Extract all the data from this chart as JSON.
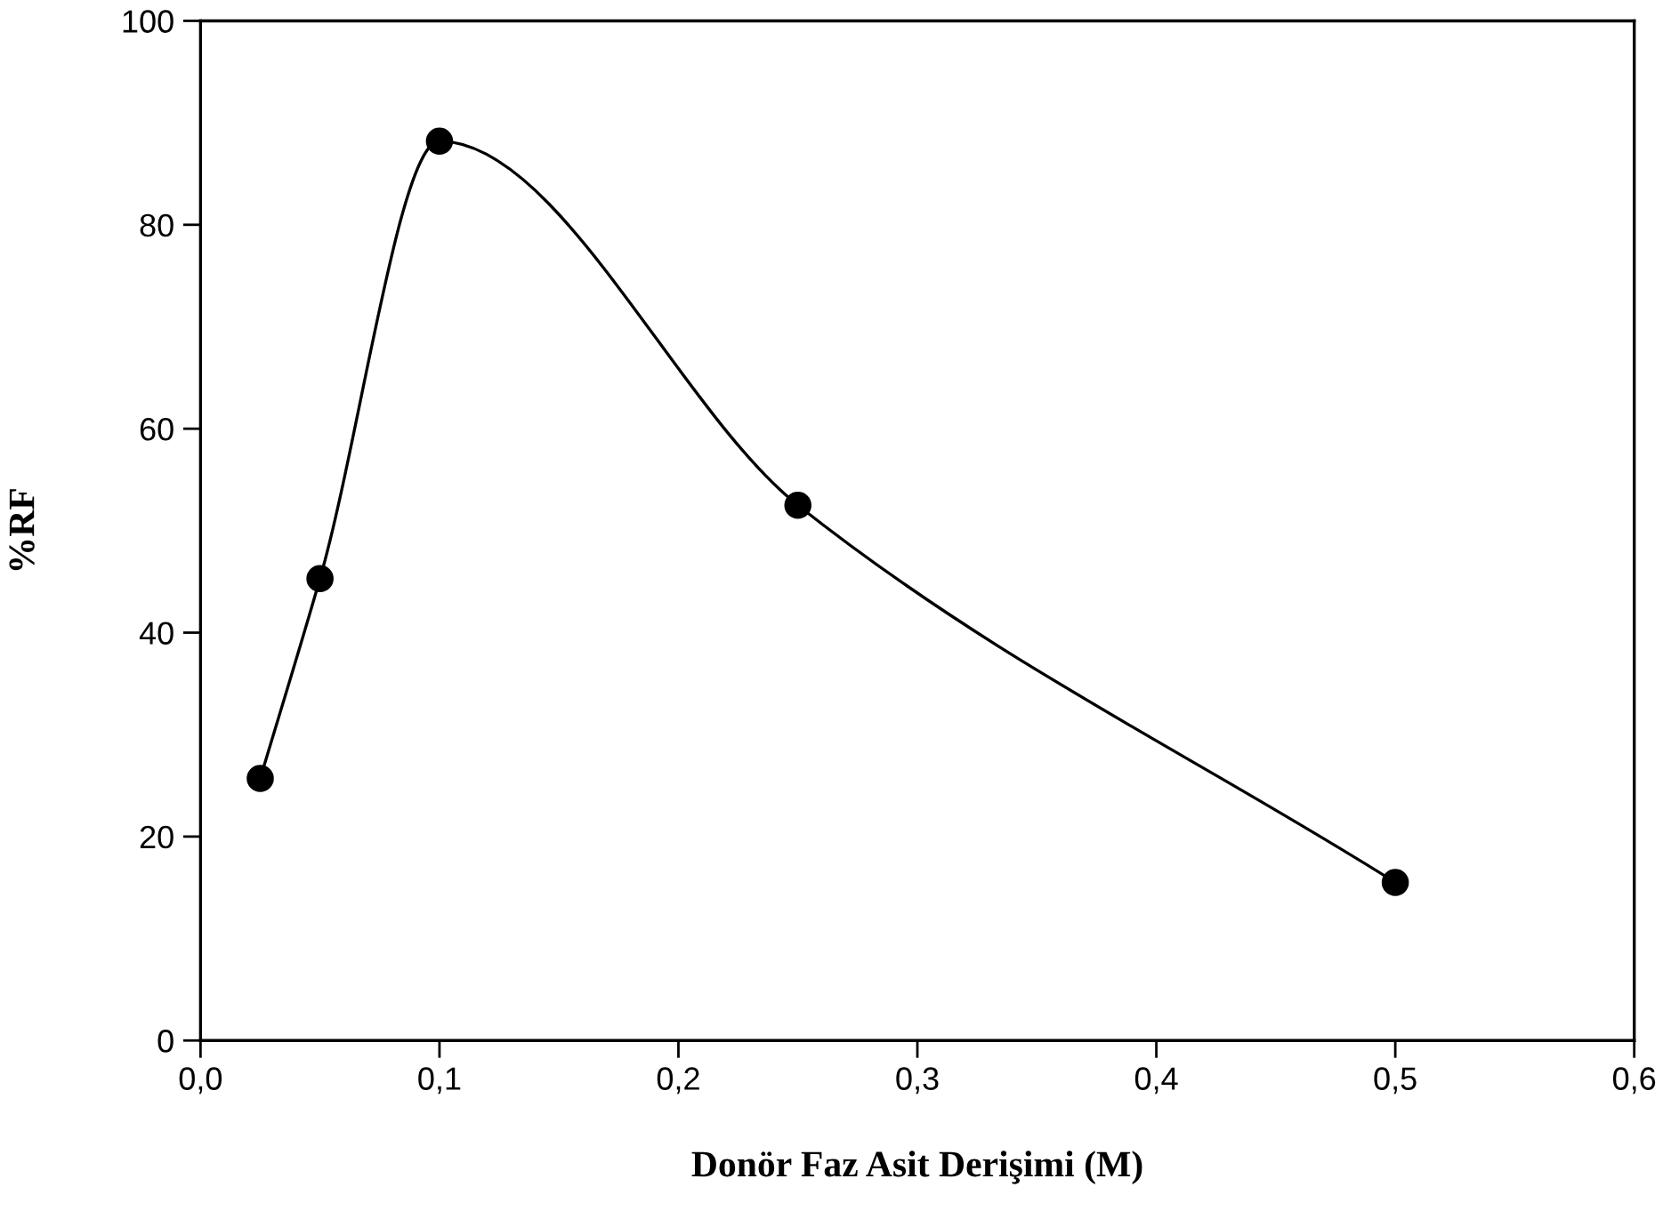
{
  "chart_data": {
    "type": "line",
    "xlabel": "Donör Faz Asit Derişimi (M)",
    "ylabel": "%RF",
    "x": [
      0.025,
      0.05,
      0.1,
      0.25,
      0.5
    ],
    "series": [
      {
        "color": "#000000",
        "values": [
          25.7,
          45.3,
          88.2,
          52.5,
          15.5
        ]
      }
    ],
    "marker": "circle",
    "line_style": "solid",
    "grid": false,
    "legend": false,
    "xlim": [
      0,
      0.6
    ],
    "xticks": [
      {
        "value": 0,
        "label": "0,0"
      },
      {
        "value": 0.1,
        "label": "0,1"
      },
      {
        "value": 0.2,
        "label": "0,2"
      },
      {
        "value": 0.3,
        "label": "0,3"
      },
      {
        "value": 0.4,
        "label": "0,4"
      },
      {
        "value": 0.5,
        "label": "0,5"
      },
      {
        "value": 0.6,
        "label": "0,6"
      }
    ],
    "ylim": [
      0,
      100
    ],
    "yticks": [
      0,
      20,
      40,
      60,
      80,
      100
    ]
  }
}
